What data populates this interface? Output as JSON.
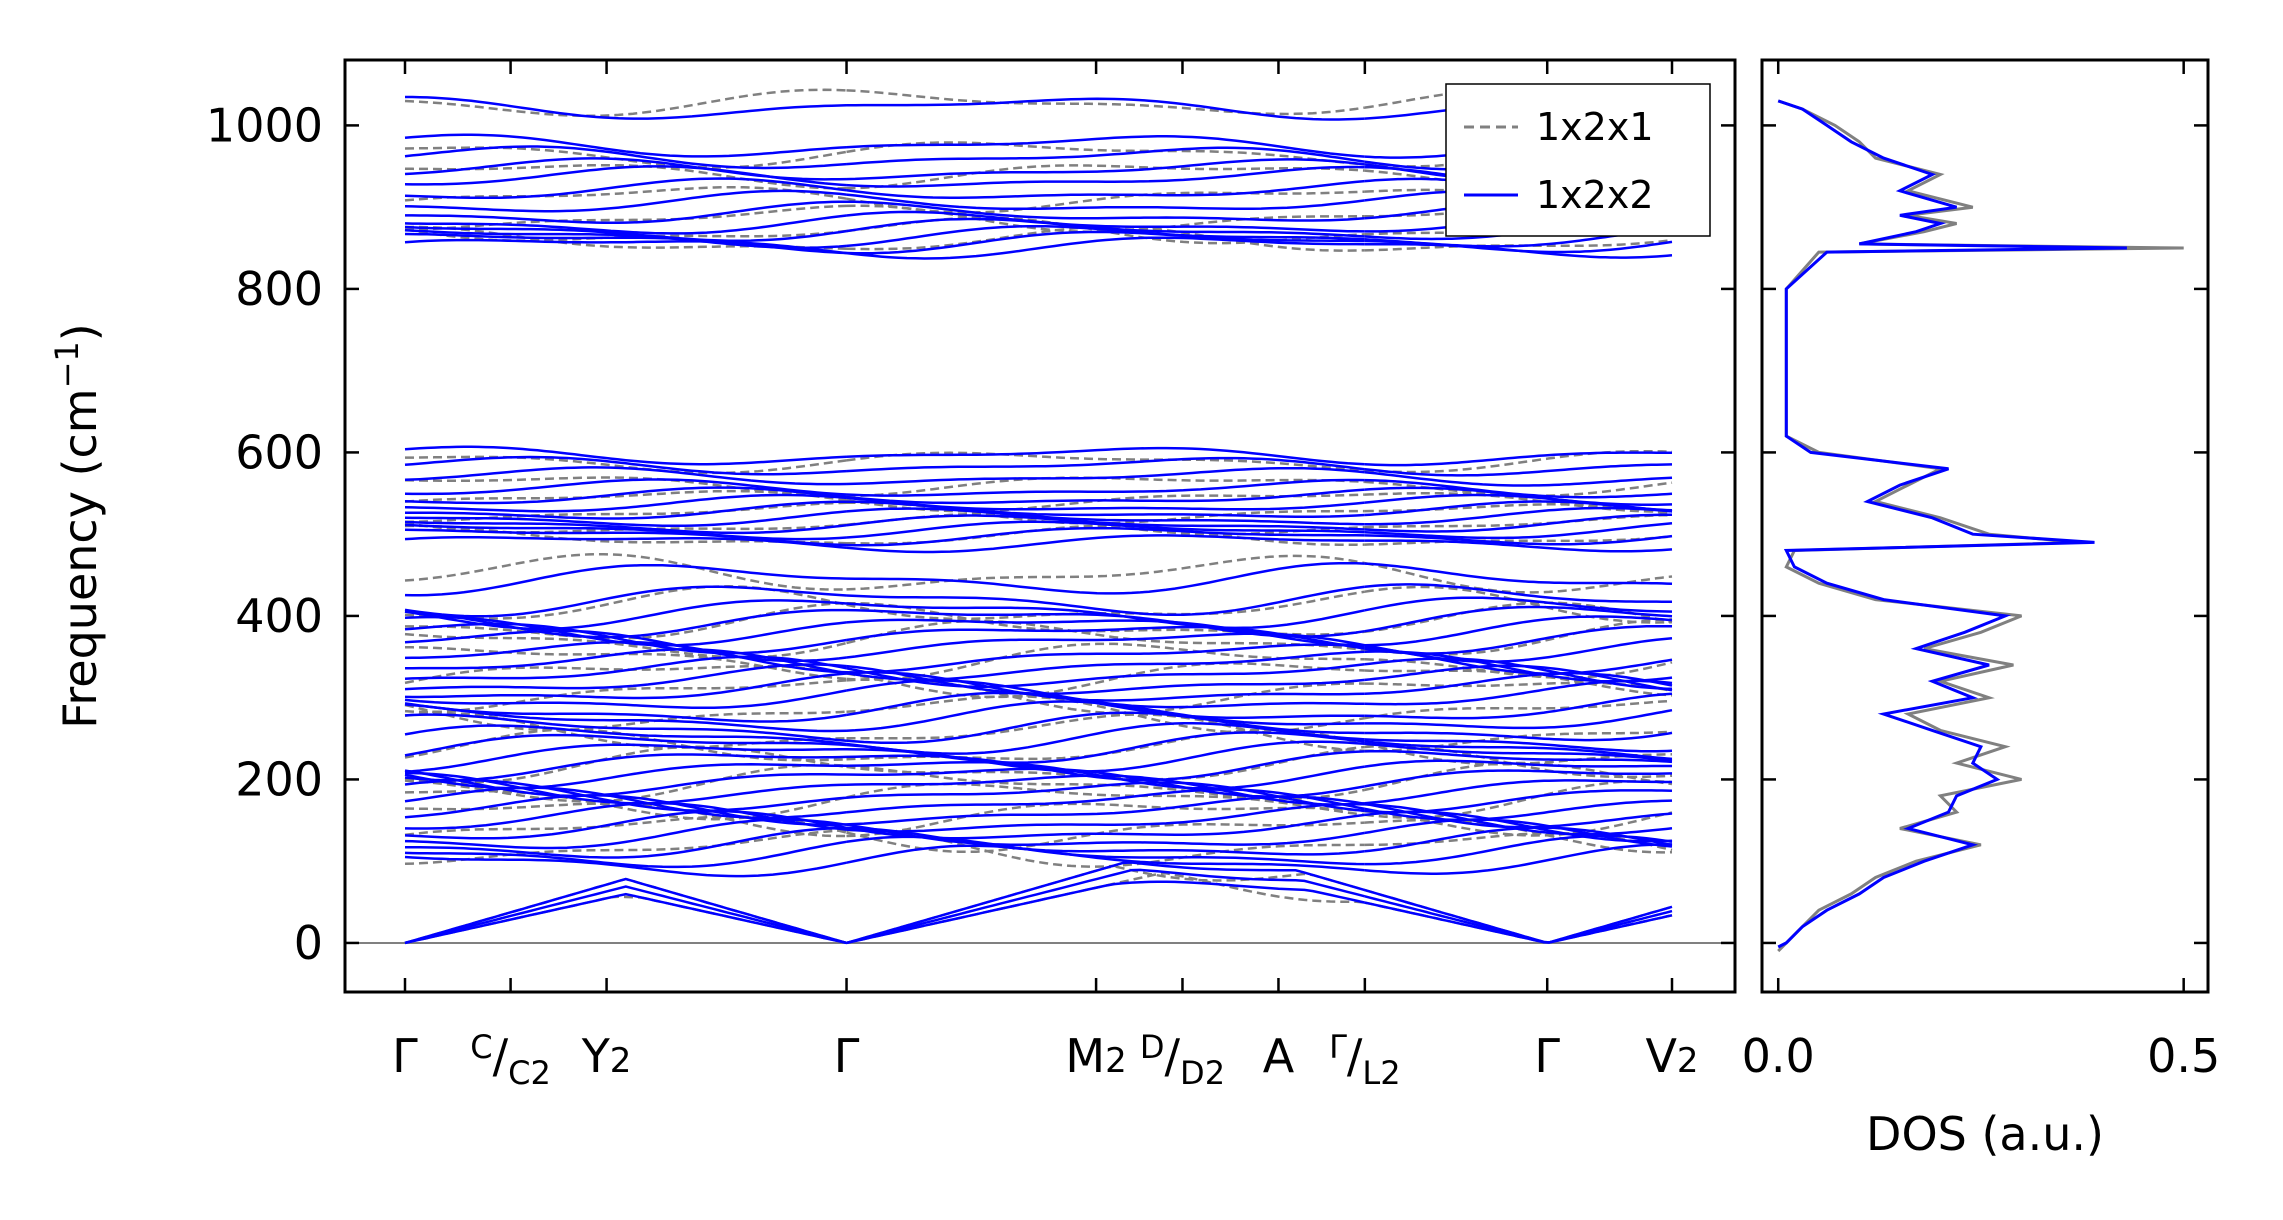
{
  "chart_data": [
    {
      "type": "line",
      "panel": "phonon-band-structure",
      "ylabel": "Frequency (cm",
      "ylabel_sup": "−1",
      "ylabel_end": ")",
      "ylim": [
        -60,
        1080
      ],
      "yticks": [
        "0",
        "200",
        "400",
        "600",
        "800",
        "1000"
      ],
      "ytick_values": [
        0,
        200,
        400,
        600,
        800,
        1000
      ],
      "xtick_labels": [
        {
          "main": "Γ",
          "sup": "",
          "sub": ""
        },
        {
          "main": "",
          "sup": "C",
          "sub": "C2",
          "slash": "/"
        },
        {
          "main": "Y2",
          "sup": "",
          "sub": ""
        },
        {
          "main": "Γ",
          "sup": "",
          "sub": ""
        },
        {
          "main": "M2",
          "sup": "",
          "sub": ""
        },
        {
          "main": "",
          "sup": "D",
          "sub": "D2",
          "slash": "/"
        },
        {
          "main": "A",
          "sup": "",
          "sub": ""
        },
        {
          "main": "",
          "sup": "Γ",
          "sub": "L2",
          "slash": "/"
        },
        {
          "main": "Γ",
          "sup": "",
          "sub": ""
        },
        {
          "main": "V2",
          "sup": "",
          "sub": ""
        }
      ],
      "xticks_path_position": [
        0,
        0.11,
        0.21,
        0.46,
        0.72,
        0.81,
        0.91,
        1.0,
        1.19,
        1.32
      ],
      "zero_line": true,
      "legend": {
        "placement": "upper-right",
        "entries": [
          "1x2x1",
          "1x2x2"
        ]
      },
      "series": [
        {
          "name": "1x2x1",
          "color": "#808080",
          "style": "dashed"
        },
        {
          "name": "1x2x2",
          "color": "#0000ff",
          "style": "solid"
        }
      ],
      "bands_1x2x2": {
        "high_group": [
          852,
          858,
          864,
          872,
          880,
          892,
          905,
          920,
          935,
          945,
          960,
          975,
          1022
        ],
        "mid_group": [
          490,
          498,
          505,
          512,
          520,
          528,
          536,
          545,
          555,
          570,
          583,
          596
        ],
        "low_group": [
          60,
          75,
          90,
          100,
          110,
          120,
          130,
          140,
          150,
          160,
          170,
          180,
          190,
          200,
          210,
          220,
          230,
          240,
          250,
          262,
          275,
          285,
          300,
          310,
          320,
          330,
          340,
          350,
          365,
          375,
          385,
          395,
          405,
          420,
          445
        ]
      }
    },
    {
      "type": "line",
      "panel": "density-of-states",
      "xlabel": "DOS (a.u.)",
      "xticks": [
        "0.0",
        "0.5"
      ],
      "xtick_values": [
        0.0,
        0.5
      ],
      "xlim": [
        -0.02,
        0.53
      ],
      "ylim": [
        -60,
        1080
      ],
      "series": [
        {
          "name": "1x2x1",
          "color": "#808080",
          "freq": [
            -10,
            0,
            20,
            40,
            60,
            80,
            100,
            120,
            140,
            160,
            180,
            200,
            220,
            240,
            260,
            280,
            300,
            320,
            340,
            360,
            380,
            400,
            420,
            440,
            460,
            480,
            490,
            500,
            520,
            540,
            560,
            580,
            600,
            620,
            700,
            800,
            845,
            850,
            855,
            870,
            880,
            890,
            900,
            920,
            940,
            960,
            980,
            1000,
            1020,
            1030
          ],
          "dos": [
            0.0,
            0.01,
            0.03,
            0.05,
            0.09,
            0.12,
            0.17,
            0.25,
            0.15,
            0.22,
            0.2,
            0.3,
            0.22,
            0.28,
            0.2,
            0.16,
            0.26,
            0.2,
            0.29,
            0.18,
            0.25,
            0.3,
            0.12,
            0.05,
            0.01,
            0.02,
            0.37,
            0.26,
            0.2,
            0.12,
            0.16,
            0.2,
            0.05,
            0.01,
            0.01,
            0.01,
            0.05,
            0.5,
            0.1,
            0.18,
            0.22,
            0.16,
            0.24,
            0.16,
            0.2,
            0.12,
            0.1,
            0.07,
            0.03,
            0.0
          ]
        },
        {
          "name": "1x2x2",
          "color": "#0000ff",
          "freq": [
            -5,
            0,
            20,
            40,
            60,
            80,
            100,
            120,
            140,
            160,
            180,
            200,
            220,
            240,
            260,
            280,
            300,
            320,
            340,
            360,
            380,
            400,
            420,
            440,
            460,
            480,
            490,
            500,
            520,
            540,
            560,
            580,
            600,
            620,
            700,
            800,
            845,
            850,
            855,
            870,
            880,
            890,
            900,
            920,
            940,
            960,
            980,
            1000,
            1020,
            1030
          ],
          "dos": [
            0.0,
            0.01,
            0.03,
            0.06,
            0.1,
            0.13,
            0.18,
            0.24,
            0.16,
            0.21,
            0.22,
            0.27,
            0.24,
            0.25,
            0.19,
            0.13,
            0.24,
            0.19,
            0.26,
            0.17,
            0.23,
            0.28,
            0.13,
            0.06,
            0.02,
            0.01,
            0.39,
            0.24,
            0.19,
            0.11,
            0.15,
            0.21,
            0.04,
            0.01,
            0.01,
            0.01,
            0.06,
            0.43,
            0.1,
            0.17,
            0.2,
            0.15,
            0.22,
            0.15,
            0.19,
            0.13,
            0.09,
            0.06,
            0.03,
            0.0
          ]
        }
      ]
    }
  ]
}
